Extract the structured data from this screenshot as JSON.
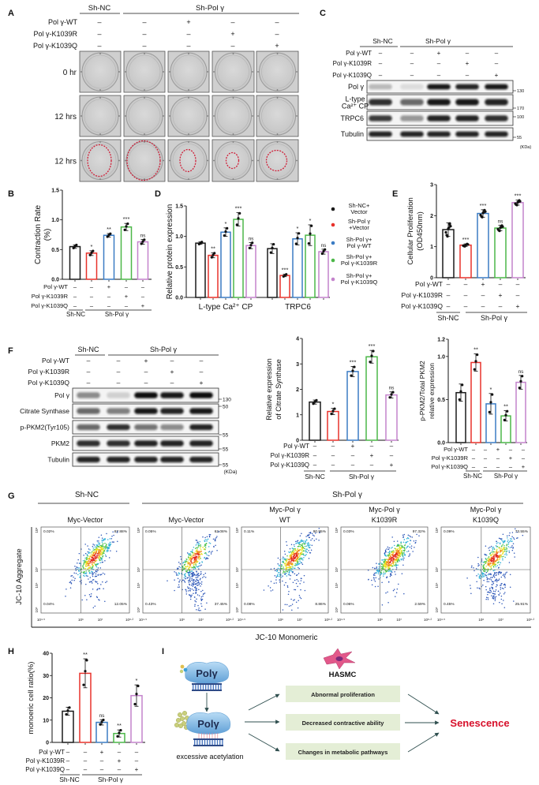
{
  "colors": {
    "bars": [
      "#1a1a1a",
      "#e8322b",
      "#3b7cc4",
      "#4cb748",
      "#c483cc"
    ],
    "senescence": "#d7102b",
    "effect_box": "#e4eed6",
    "contraction_outline": "#d0213a"
  },
  "panel_labels": [
    "A",
    "B",
    "C",
    "D",
    "E",
    "F",
    "G",
    "H",
    "I"
  ],
  "treatments": {
    "rows": [
      {
        "label": "Pol γ-WT",
        "signs": [
          "–",
          "–",
          "+",
          "–",
          "–"
        ]
      },
      {
        "label": "Pol γ-K1039R",
        "signs": [
          "–",
          "–",
          "–",
          "+",
          "–"
        ]
      },
      {
        "label": "Pol γ-K1039Q",
        "signs": [
          "–",
          "–",
          "–",
          "–",
          "+"
        ]
      }
    ],
    "groups": [
      "Sh-NC",
      "Sh-Pol γ"
    ]
  },
  "panel_a": {
    "time_labels": [
      "0 hr",
      "12 hrs",
      "12 hrs"
    ]
  },
  "panel_c": {
    "unit": "(KDa)",
    "blots": [
      {
        "label": [
          "Pol γ"
        ],
        "marker": "130",
        "intensity": [
          0.25,
          0.1,
          0.95,
          0.9,
          0.95
        ]
      },
      {
        "label": [
          "L-type",
          "Ca²⁺ CP"
        ],
        "marker": "170",
        "intensity": [
          0.85,
          0.6,
          0.95,
          0.95,
          0.9
        ]
      },
      {
        "label": [
          "TRPC6"
        ],
        "marker": "100",
        "intensity": [
          0.8,
          0.4,
          0.9,
          0.9,
          0.85
        ]
      },
      {
        "label": [
          "Tubulin"
        ],
        "marker": "55",
        "intensity": [
          0.9,
          0.9,
          0.9,
          0.9,
          0.9
        ]
      }
    ]
  },
  "panel_f_blot": {
    "unit": "(KDa)",
    "blots": [
      {
        "label": "Pol γ",
        "marker": "130",
        "intensity": [
          0.45,
          0.15,
          1.0,
          0.95,
          1.0
        ]
      },
      {
        "label": "Citrate Synthase",
        "marker": "50",
        "intensity": [
          0.6,
          0.5,
          0.95,
          0.9,
          0.95
        ]
      },
      {
        "label": "p-PKM2(Tyr105)",
        "marker": "55",
        "intensity": [
          0.6,
          0.85,
          0.55,
          0.45,
          0.9
        ]
      },
      {
        "label": "PKM2",
        "marker": "55",
        "intensity": [
          0.85,
          0.85,
          0.9,
          0.9,
          0.9
        ]
      },
      {
        "label": "Tubulin",
        "marker": "55",
        "intensity": [
          0.9,
          0.9,
          0.9,
          0.9,
          0.9
        ]
      }
    ]
  },
  "chart_data": [
    {
      "panel": "B",
      "type": "bar",
      "ylabel": [
        "Contraction Rate",
        "(%)"
      ],
      "ylim": [
        0,
        1.5
      ],
      "yticks": [
        "0.0",
        "0.5",
        "1.0",
        "1.5"
      ],
      "groups": [
        {
          "label": "",
          "values": [
            0.55,
            0.44,
            0.74,
            0.88,
            0.63
          ],
          "sd": [
            0.03,
            0.04,
            0.03,
            0.06,
            0.04
          ],
          "n": 3,
          "significance": [
            "",
            "*",
            "**",
            "***",
            "ns"
          ]
        }
      ]
    },
    {
      "panel": "D",
      "type": "bar",
      "ylabel": [
        "Relative protein expression"
      ],
      "ylim": [
        0,
        1.5
      ],
      "yticks": [
        "0.0",
        "0.5",
        "1.0",
        "1.5"
      ],
      "groups": [
        {
          "label": "L-type Ca²⁺ CP",
          "values": [
            0.89,
            0.69,
            1.07,
            1.28,
            0.85
          ],
          "sd": [
            0.02,
            0.04,
            0.07,
            0.11,
            0.05
          ],
          "n": 3,
          "significance": [
            "",
            "**",
            "*",
            "***",
            "ns"
          ]
        },
        {
          "label": "TRPC6",
          "values": [
            0.8,
            0.36,
            0.96,
            1.02,
            0.75
          ],
          "sd": [
            0.08,
            0.02,
            0.1,
            0.17,
            0.04
          ],
          "n": 3,
          "significance": [
            "",
            "***",
            "*",
            "*",
            "ns"
          ]
        }
      ],
      "legend": [
        [
          "Sh-NC+",
          "Vector"
        ],
        [
          "Sh-Pol γ",
          "+Vector"
        ],
        [
          "Sh-Pol γ+",
          "Pol γ-WT"
        ],
        [
          "Sh-Pol γ+",
          "Pol γ-K1039R"
        ],
        [
          "Sh-Pol γ+",
          "Pol γ-K1039Q"
        ]
      ],
      "legend_position": "right"
    },
    {
      "panel": "E",
      "type": "bar",
      "ylabel": [
        "Cellular Proliferation",
        "(OD450nm)"
      ],
      "ylim": [
        0,
        3
      ],
      "yticks": [
        "0",
        "1",
        "2",
        "3"
      ],
      "groups": [
        {
          "label": "",
          "values": [
            1.55,
            1.05,
            2.07,
            1.6,
            2.42
          ],
          "sd": [
            0.22,
            0.04,
            0.12,
            0.09,
            0.08
          ],
          "n": 8,
          "significance": [
            "",
            "***",
            "***",
            "ns",
            "***"
          ]
        }
      ]
    },
    {
      "panel": "F-citrate",
      "type": "bar",
      "ylabel": [
        "Relative expression",
        "of Citrate Synthase"
      ],
      "ylim": [
        0,
        4
      ],
      "yticks": [
        "0",
        "1",
        "2",
        "3",
        "4"
      ],
      "groups": [
        {
          "label": "",
          "values": [
            1.5,
            1.13,
            2.7,
            3.28,
            1.78
          ],
          "sd": [
            0.08,
            0.12,
            0.2,
            0.25,
            0.12
          ],
          "n": 3,
          "significance": [
            "",
            "*",
            "***",
            "***",
            "ns"
          ]
        }
      ]
    },
    {
      "panel": "F-pkm2",
      "type": "bar",
      "ylabel": [
        "p-PKM2/Total PKM2",
        "relative expression"
      ],
      "ylim": [
        0,
        1.2
      ],
      "yticks": [
        "0.0",
        "0.5",
        "1.0",
        "1.2"
      ],
      "groups": [
        {
          "label": "",
          "values": [
            0.58,
            0.93,
            0.45,
            0.31,
            0.7
          ],
          "sd": [
            0.1,
            0.1,
            0.12,
            0.06,
            0.08
          ],
          "n": 3,
          "significance": [
            "",
            "**",
            "*",
            "**",
            "ns"
          ]
        }
      ]
    },
    {
      "panel": "H",
      "type": "bar",
      "ylabel": [
        "monoeric cell ratio(%)"
      ],
      "ylim": [
        0,
        40
      ],
      "yticks": [
        "0",
        "10",
        "20",
        "30",
        "40"
      ],
      "groups": [
        {
          "label": "",
          "values": [
            14,
            31,
            9,
            4,
            21
          ],
          "sd": [
            1.8,
            6.5,
            1.2,
            1.6,
            4.8
          ],
          "n": 3,
          "significance": [
            "",
            "**",
            "ns",
            "**",
            "*"
          ]
        }
      ]
    },
    {
      "panel": "G",
      "type": "scatter",
      "groups": [
        "Sh-NC",
        "Sh-Pol γ"
      ],
      "ylabel": "JC-10 Aggregate",
      "xlabel": "JC-10 Monomeric",
      "xticks": [
        "10⁴·⁵",
        "10⁶",
        "10⁷",
        "10⁸·²"
      ],
      "yticks": [
        "10⁵",
        "10⁶",
        "10⁷",
        "10⁸"
      ],
      "plots": [
        {
          "title": [
            "",
            "Myc-Vector"
          ],
          "quadrants": {
            "ul": "0.02%",
            "ur": "87.88%",
            "ll": "0.04%",
            "lr": "12.05%"
          }
        },
        {
          "title": [
            "",
            "Myc-Vector"
          ],
          "quadrants": {
            "ul": "0.05%",
            "ur": "62.08%",
            "ll": "0.43%",
            "lr": "37.45%"
          }
        },
        {
          "title": [
            "Myc-Pol γ",
            "WT"
          ],
          "quadrants": {
            "ul": "0.11%",
            "ur": "90.95%",
            "ll": "0.08%",
            "lr": "8.86%"
          }
        },
        {
          "title": [
            "Myc-Pol γ",
            "K1039R"
          ],
          "quadrants": {
            "ul": "0.03%",
            "ur": "97.32%",
            "ll": "0.06%",
            "lr": "2.59%"
          }
        },
        {
          "title": [
            "Myc-Pol γ",
            "K1039Q"
          ],
          "quadrants": {
            "ul": "0.09%",
            "ur": "73.55%",
            "ll": "0.45%",
            "lr": "25.91%"
          }
        }
      ]
    }
  ],
  "panel_i": {
    "protein": "Polγ",
    "cell": "HASMC",
    "modification": "excessive acetylation",
    "effects": [
      "Abnormal proliferation",
      "Decreased contractive ability",
      "Changes in metabolic pathways"
    ],
    "outcome": "Senescence"
  }
}
